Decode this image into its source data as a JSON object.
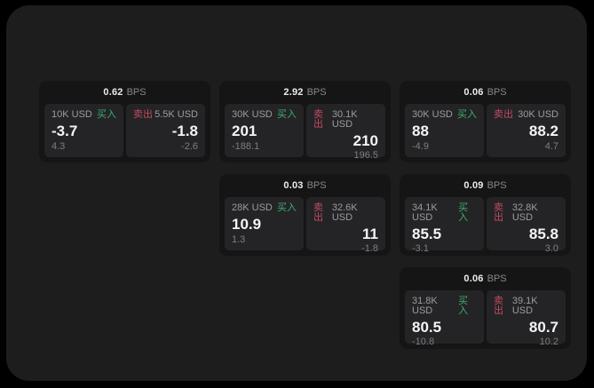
{
  "labels": {
    "bps": "BPS",
    "buy": "买入",
    "sell": "卖出"
  },
  "colors": {
    "buy_accent": "#3fae6e",
    "sell_accent": "#c44a60",
    "window_bg": "#1d1d1e",
    "card_bg": "#151516",
    "panel_bg": "#242426"
  },
  "cards": [
    {
      "bps": "0.62",
      "buy": {
        "amount": "10K USD",
        "value": "-3.7",
        "delta": "4.3"
      },
      "sell": {
        "amount": "5.5K USD",
        "value": "-1.8",
        "delta": "-2.6"
      }
    },
    {
      "bps": "2.92",
      "buy": {
        "amount": "30K USD",
        "value": "201",
        "delta": "-188.1"
      },
      "sell": {
        "amount": "30.1K USD",
        "value": "210",
        "delta": "196.5"
      }
    },
    {
      "bps": "0.06",
      "buy": {
        "amount": "30K USD",
        "value": "88",
        "delta": "-4.9"
      },
      "sell": {
        "amount": "30K USD",
        "value": "88.2",
        "delta": "4.7"
      }
    },
    {
      "bps": "0.03",
      "buy": {
        "amount": "28K USD",
        "value": "10.9",
        "delta": "1.3"
      },
      "sell": {
        "amount": "32.6K USD",
        "value": "11",
        "delta": "-1.8"
      }
    },
    {
      "bps": "0.09",
      "buy": {
        "amount": "34.1K USD",
        "value": "85.5",
        "delta": "-3.1"
      },
      "sell": {
        "amount": "32.8K USD",
        "value": "85.8",
        "delta": "3.0"
      }
    },
    {
      "bps": "0.06",
      "buy": {
        "amount": "31.8K USD",
        "value": "80.5",
        "delta": "-10.8"
      },
      "sell": {
        "amount": "39.1K USD",
        "value": "80.7",
        "delta": "10.2"
      }
    }
  ]
}
